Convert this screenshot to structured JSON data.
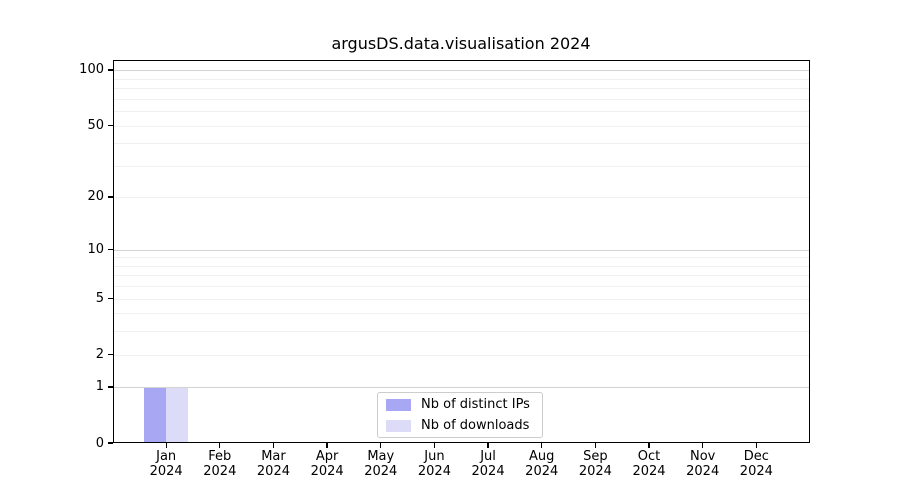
{
  "style": {
    "background": "#ffffff",
    "axis_color": "#000000",
    "text_color": "#000000",
    "minor_grid_color": "#f0f0f0",
    "major_grid_color": "#d3d3d3",
    "legend_border_color": "#cccccc"
  },
  "chart_data": {
    "type": "bar",
    "title": "argusDS.data.visualisation 2024",
    "xlabel": "",
    "ylabel": "",
    "categories": [
      "Jan",
      "Feb",
      "Mar",
      "Apr",
      "May",
      "Jun",
      "Jul",
      "Aug",
      "Sep",
      "Oct",
      "Nov",
      "Dec"
    ],
    "category_year": "2024",
    "series": [
      {
        "name": "Nb of distinct IPs",
        "color": "#a7a7f3",
        "values": [
          1,
          0,
          0,
          0,
          0,
          0,
          0,
          0,
          0,
          0,
          0,
          0
        ]
      },
      {
        "name": "Nb of downloads",
        "color": "#dcdcf9",
        "values": [
          1,
          0,
          0,
          0,
          0,
          0,
          0,
          0,
          0,
          0,
          0,
          0
        ]
      }
    ],
    "y_axis": {
      "scale": "log1p",
      "max": 113.3,
      "tick_values": [
        0,
        1,
        2,
        5,
        10,
        20,
        50,
        100
      ],
      "tick_labels": [
        "0",
        "1",
        "2",
        "5",
        "10",
        "20",
        "50",
        "100"
      ],
      "minor_gridlines": [
        2,
        3,
        4,
        5,
        6,
        7,
        8,
        9,
        20,
        30,
        40,
        50,
        60,
        70,
        80,
        90
      ],
      "major_gridlines": [
        1,
        10,
        100
      ]
    },
    "grid": true,
    "legend": {
      "position": "lower center"
    }
  }
}
